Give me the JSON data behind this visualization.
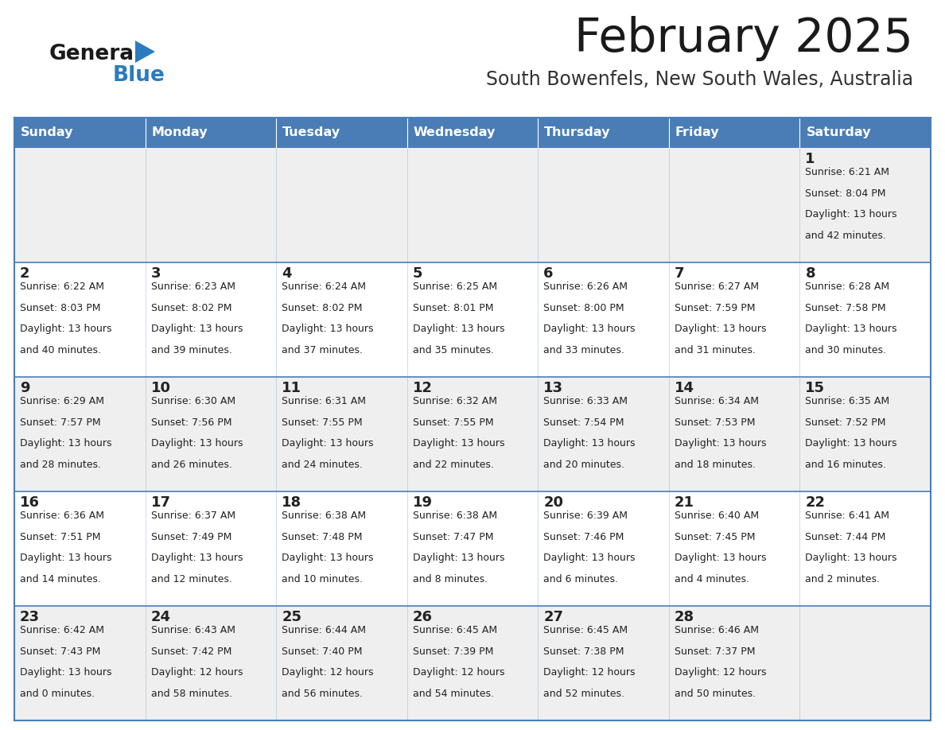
{
  "title": "February 2025",
  "subtitle": "South Bowenfels, New South Wales, Australia",
  "header_bg": "#4a7db5",
  "header_text": "#ffffff",
  "day_names": [
    "Sunday",
    "Monday",
    "Tuesday",
    "Wednesday",
    "Thursday",
    "Friday",
    "Saturday"
  ],
  "row_bg_odd": "#efefef",
  "row_bg_even": "#ffffff",
  "cell_text_color": "#222222",
  "day_num_color": "#222222",
  "border_color": "#4a7db5",
  "title_color": "#1a1a1a",
  "subtitle_color": "#333333",
  "logo_general_color": "#1a1a1a",
  "logo_blue_color": "#2b7bbf",
  "weeks": [
    [
      {
        "day": null,
        "sunrise": null,
        "sunset": null,
        "daylight": null
      },
      {
        "day": null,
        "sunrise": null,
        "sunset": null,
        "daylight": null
      },
      {
        "day": null,
        "sunrise": null,
        "sunset": null,
        "daylight": null
      },
      {
        "day": null,
        "sunrise": null,
        "sunset": null,
        "daylight": null
      },
      {
        "day": null,
        "sunrise": null,
        "sunset": null,
        "daylight": null
      },
      {
        "day": null,
        "sunrise": null,
        "sunset": null,
        "daylight": null
      },
      {
        "day": 1,
        "sunrise": "6:21 AM",
        "sunset": "8:04 PM",
        "daylight": "13 hours and 42 minutes"
      }
    ],
    [
      {
        "day": 2,
        "sunrise": "6:22 AM",
        "sunset": "8:03 PM",
        "daylight": "13 hours and 40 minutes"
      },
      {
        "day": 3,
        "sunrise": "6:23 AM",
        "sunset": "8:02 PM",
        "daylight": "13 hours and 39 minutes"
      },
      {
        "day": 4,
        "sunrise": "6:24 AM",
        "sunset": "8:02 PM",
        "daylight": "13 hours and 37 minutes"
      },
      {
        "day": 5,
        "sunrise": "6:25 AM",
        "sunset": "8:01 PM",
        "daylight": "13 hours and 35 minutes"
      },
      {
        "day": 6,
        "sunrise": "6:26 AM",
        "sunset": "8:00 PM",
        "daylight": "13 hours and 33 minutes"
      },
      {
        "day": 7,
        "sunrise": "6:27 AM",
        "sunset": "7:59 PM",
        "daylight": "13 hours and 31 minutes"
      },
      {
        "day": 8,
        "sunrise": "6:28 AM",
        "sunset": "7:58 PM",
        "daylight": "13 hours and 30 minutes"
      }
    ],
    [
      {
        "day": 9,
        "sunrise": "6:29 AM",
        "sunset": "7:57 PM",
        "daylight": "13 hours and 28 minutes"
      },
      {
        "day": 10,
        "sunrise": "6:30 AM",
        "sunset": "7:56 PM",
        "daylight": "13 hours and 26 minutes"
      },
      {
        "day": 11,
        "sunrise": "6:31 AM",
        "sunset": "7:55 PM",
        "daylight": "13 hours and 24 minutes"
      },
      {
        "day": 12,
        "sunrise": "6:32 AM",
        "sunset": "7:55 PM",
        "daylight": "13 hours and 22 minutes"
      },
      {
        "day": 13,
        "sunrise": "6:33 AM",
        "sunset": "7:54 PM",
        "daylight": "13 hours and 20 minutes"
      },
      {
        "day": 14,
        "sunrise": "6:34 AM",
        "sunset": "7:53 PM",
        "daylight": "13 hours and 18 minutes"
      },
      {
        "day": 15,
        "sunrise": "6:35 AM",
        "sunset": "7:52 PM",
        "daylight": "13 hours and 16 minutes"
      }
    ],
    [
      {
        "day": 16,
        "sunrise": "6:36 AM",
        "sunset": "7:51 PM",
        "daylight": "13 hours and 14 minutes"
      },
      {
        "day": 17,
        "sunrise": "6:37 AM",
        "sunset": "7:49 PM",
        "daylight": "13 hours and 12 minutes"
      },
      {
        "day": 18,
        "sunrise": "6:38 AM",
        "sunset": "7:48 PM",
        "daylight": "13 hours and 10 minutes"
      },
      {
        "day": 19,
        "sunrise": "6:38 AM",
        "sunset": "7:47 PM",
        "daylight": "13 hours and 8 minutes"
      },
      {
        "day": 20,
        "sunrise": "6:39 AM",
        "sunset": "7:46 PM",
        "daylight": "13 hours and 6 minutes"
      },
      {
        "day": 21,
        "sunrise": "6:40 AM",
        "sunset": "7:45 PM",
        "daylight": "13 hours and 4 minutes"
      },
      {
        "day": 22,
        "sunrise": "6:41 AM",
        "sunset": "7:44 PM",
        "daylight": "13 hours and 2 minutes"
      }
    ],
    [
      {
        "day": 23,
        "sunrise": "6:42 AM",
        "sunset": "7:43 PM",
        "daylight": "13 hours and 0 minutes"
      },
      {
        "day": 24,
        "sunrise": "6:43 AM",
        "sunset": "7:42 PM",
        "daylight": "12 hours and 58 minutes"
      },
      {
        "day": 25,
        "sunrise": "6:44 AM",
        "sunset": "7:40 PM",
        "daylight": "12 hours and 56 minutes"
      },
      {
        "day": 26,
        "sunrise": "6:45 AM",
        "sunset": "7:39 PM",
        "daylight": "12 hours and 54 minutes"
      },
      {
        "day": 27,
        "sunrise": "6:45 AM",
        "sunset": "7:38 PM",
        "daylight": "12 hours and 52 minutes"
      },
      {
        "day": 28,
        "sunrise": "6:46 AM",
        "sunset": "7:37 PM",
        "daylight": "12 hours and 50 minutes"
      },
      {
        "day": null,
        "sunrise": null,
        "sunset": null,
        "daylight": null
      }
    ]
  ]
}
